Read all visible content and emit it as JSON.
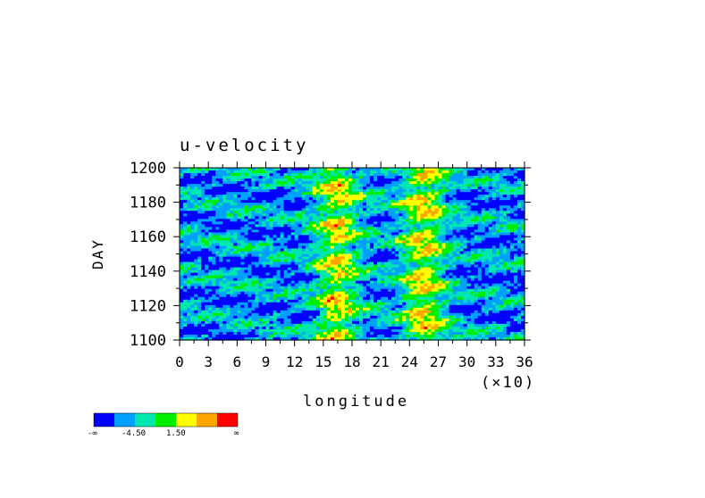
{
  "chart_data": {
    "type": "heatmap",
    "title": "u-velocity",
    "xlabel": "longitude",
    "ylabel": "DAY",
    "x_scale_note": "(×10)",
    "xlim": [
      0,
      36
    ],
    "ylim": [
      1100,
      1200
    ],
    "x_ticks": [
      "0",
      "3",
      "6",
      "9",
      "12",
      "15",
      "18",
      "21",
      "24",
      "27",
      "30",
      "33",
      "36"
    ],
    "y_ticks": [
      "1100",
      "1120",
      "1140",
      "1160",
      "1180",
      "1200"
    ],
    "colorbar": {
      "colors": [
        "#0000ff",
        "#00a0ff",
        "#00e8b0",
        "#00ee00",
        "#ffff00",
        "#ffa500",
        "#ff0000"
      ],
      "labels": [
        "-∞",
        "-4.50",
        "1.50",
        "∞"
      ]
    },
    "high_velocity_bands": [
      {
        "center_longitude": 165,
        "description": "strong positive band around longitude 150-180"
      },
      {
        "center_longitude": 255,
        "description": "strong positive band around longitude 240-270"
      }
    ]
  }
}
